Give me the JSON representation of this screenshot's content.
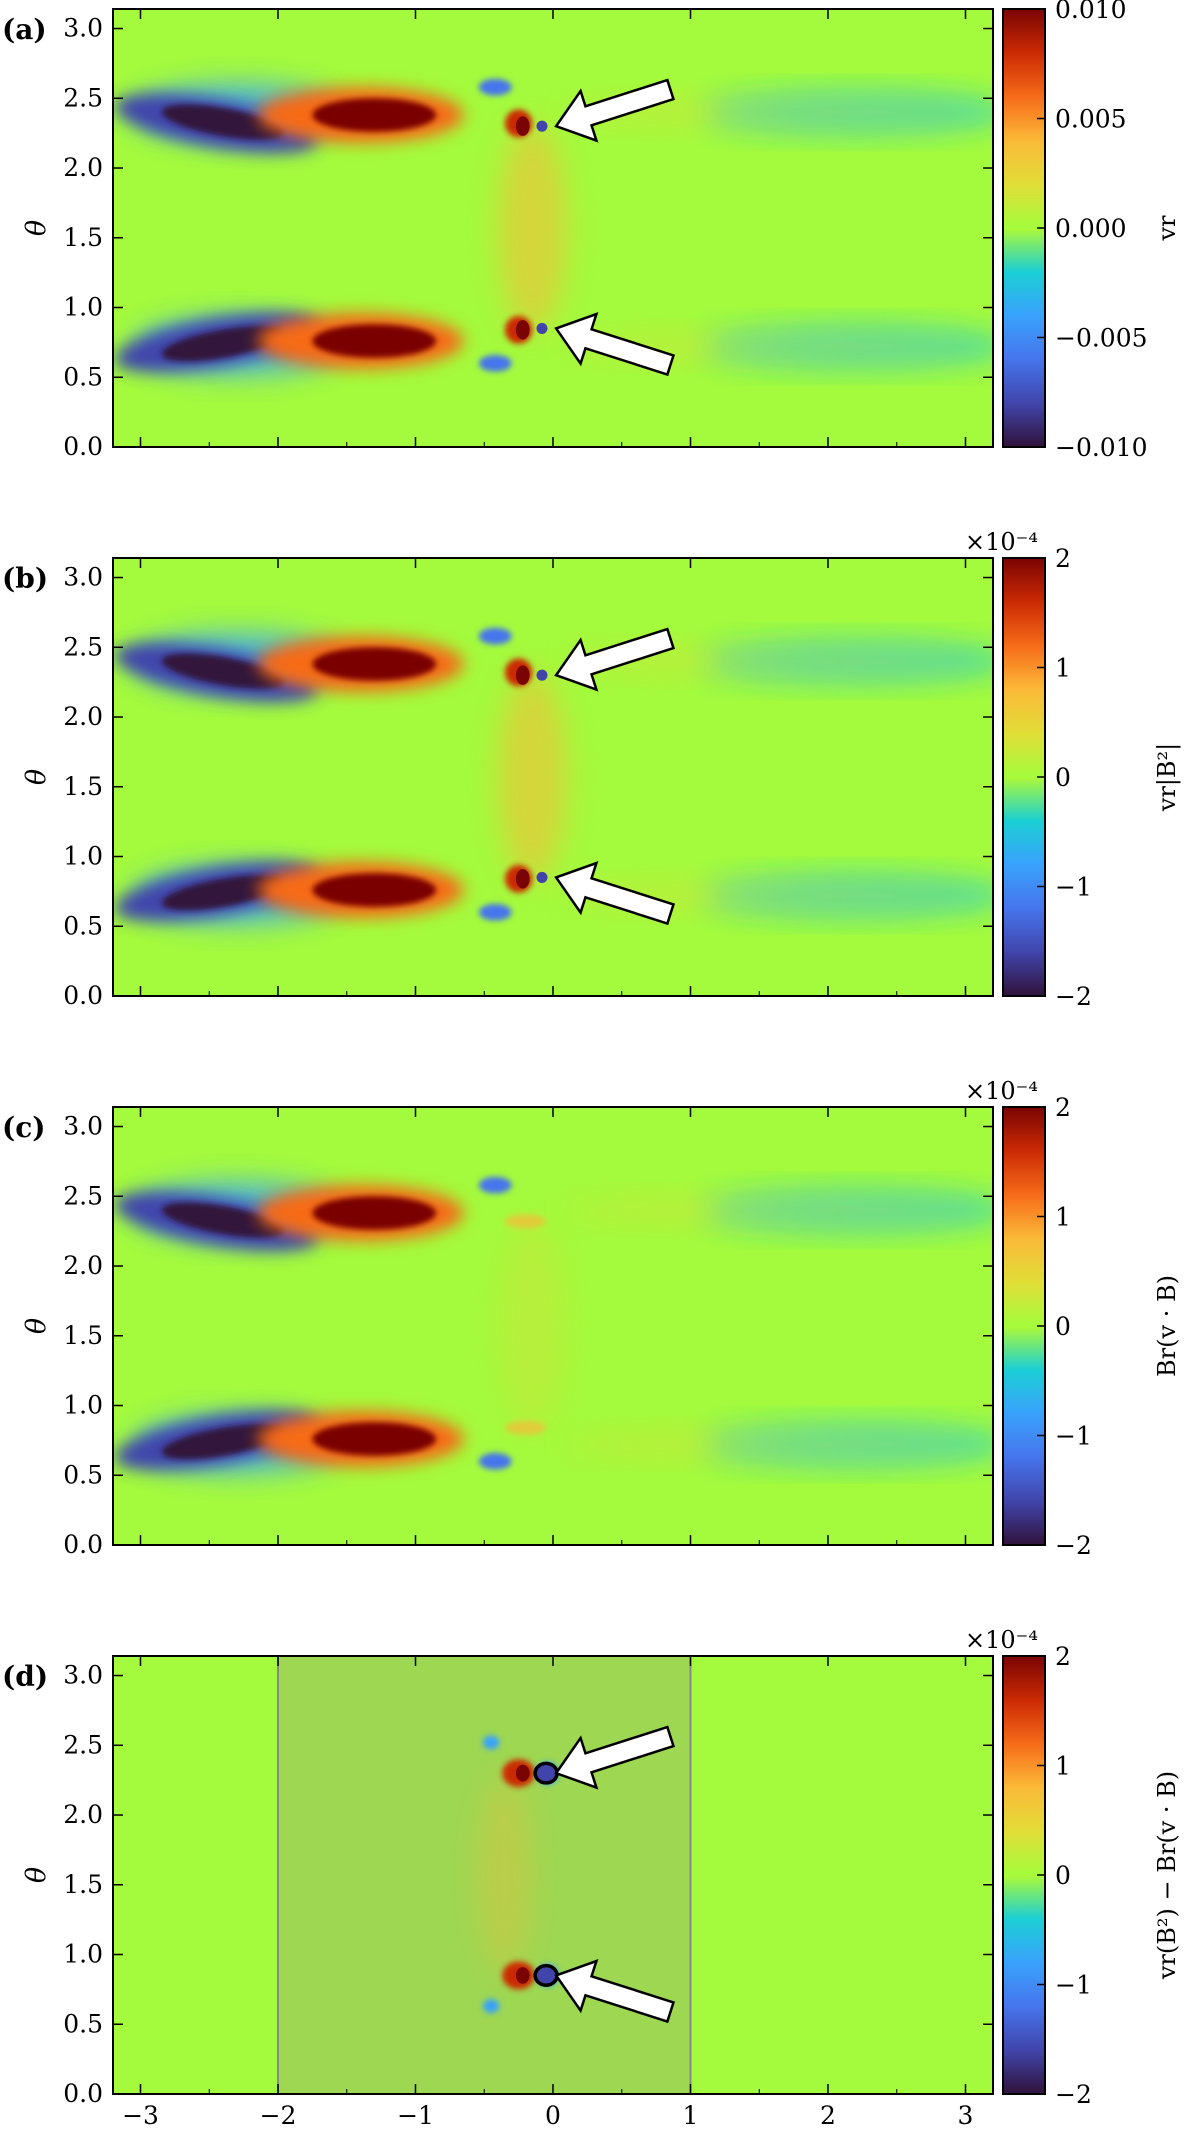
{
  "chart_data": [
    {
      "type": "heatmap",
      "panel_label": "(a)",
      "ylabel": "θ",
      "xlim": [
        -3.2,
        3.2
      ],
      "ylim": [
        0,
        3.14
      ],
      "xticks": [
        -3,
        -2,
        -1,
        0,
        1,
        2,
        3
      ],
      "yticks": [
        "0.0",
        "0.5",
        "1.0",
        "1.5",
        "2.0",
        "2.5",
        "3.0"
      ],
      "colorbar": {
        "label": "vr",
        "range": [
          -0.01,
          0.01
        ],
        "ticks": [
          "−0.010",
          "−0.005",
          "0.000",
          "0.005",
          "0.010"
        ],
        "multiplier": ""
      },
      "features": [
        {
          "x": -2.45,
          "y": 2.35,
          "sign": -1
        },
        {
          "x": -1.35,
          "y": 2.4,
          "sign": 1
        },
        {
          "x": -2.45,
          "y": 0.72,
          "sign": -1
        },
        {
          "x": -1.35,
          "y": 0.78,
          "sign": 1
        },
        {
          "x": -0.25,
          "y": 2.3,
          "sign": 1
        },
        {
          "x": -0.25,
          "y": 0.85,
          "sign": 1
        },
        {
          "x": -0.08,
          "y": 2.3,
          "sign": -1
        },
        {
          "x": -0.08,
          "y": 0.85,
          "sign": -1
        }
      ],
      "arrows": [
        {
          "x": -0.05,
          "y": 2.3
        },
        {
          "x": -0.05,
          "y": 0.85
        }
      ]
    },
    {
      "type": "heatmap",
      "panel_label": "(b)",
      "ylabel": "θ",
      "xlim": [
        -3.2,
        3.2
      ],
      "ylim": [
        0,
        3.14
      ],
      "xticks": [
        -3,
        -2,
        -1,
        0,
        1,
        2,
        3
      ],
      "yticks": [
        "0.0",
        "0.5",
        "1.0",
        "1.5",
        "2.0",
        "2.5",
        "3.0"
      ],
      "colorbar": {
        "label": "vr|B²|",
        "range": [
          -2,
          2
        ],
        "ticks": [
          "−2",
          "−1",
          "0",
          "1",
          "2"
        ],
        "multiplier": "×10⁻⁴"
      },
      "arrows": [
        {
          "x": -0.05,
          "y": 2.3
        },
        {
          "x": -0.05,
          "y": 0.85
        }
      ]
    },
    {
      "type": "heatmap",
      "panel_label": "(c)",
      "ylabel": "θ",
      "xlim": [
        -3.2,
        3.2
      ],
      "ylim": [
        0,
        3.14
      ],
      "xticks": [
        -3,
        -2,
        -1,
        0,
        1,
        2,
        3
      ],
      "yticks": [
        "0.0",
        "0.5",
        "1.0",
        "1.5",
        "2.0",
        "2.5",
        "3.0"
      ],
      "colorbar": {
        "label": "Br(v · B)",
        "range": [
          -2,
          2
        ],
        "ticks": [
          "−2",
          "−1",
          "0",
          "1",
          "2"
        ],
        "multiplier": "×10⁻⁴"
      },
      "arrows": []
    },
    {
      "type": "heatmap",
      "panel_label": "(d)",
      "ylabel": "θ",
      "xlabel": "",
      "xlim": [
        -3.2,
        3.2
      ],
      "ylim": [
        0,
        3.14
      ],
      "xticks": [
        -3,
        -2,
        -1,
        0,
        1,
        2,
        3
      ],
      "xticklabels": [
        "−3",
        "−2",
        "−1",
        "0",
        "1",
        "2",
        "3"
      ],
      "yticks": [
        "0.0",
        "0.5",
        "1.0",
        "1.5",
        "2.0",
        "2.5",
        "3.0"
      ],
      "colorbar": {
        "label": "vr(B²) − Br(v · B)",
        "range": [
          -2,
          2
        ],
        "ticks": [
          "−2",
          "−1",
          "0",
          "1",
          "2"
        ],
        "multiplier": "×10⁻⁴"
      },
      "shaded_region": [
        -2,
        1
      ],
      "arrows": [
        {
          "x": -0.05,
          "y": 2.3
        },
        {
          "x": -0.05,
          "y": 0.85
        }
      ]
    }
  ]
}
